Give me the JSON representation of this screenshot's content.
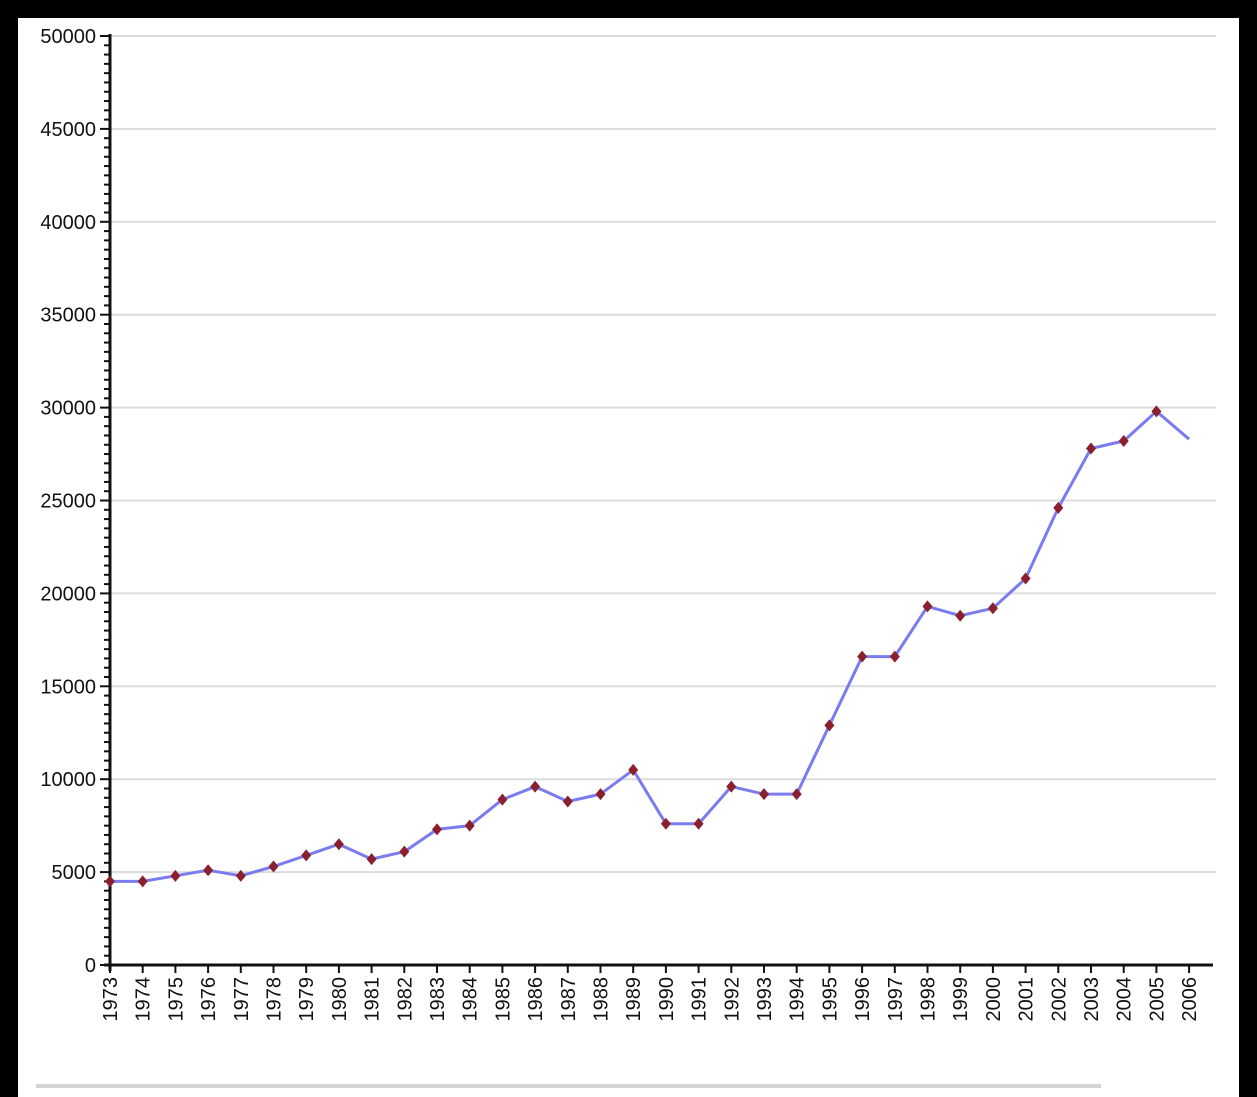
{
  "chart_data": {
    "type": "line",
    "title": "",
    "xlabel": "",
    "ylabel": "",
    "ylim": [
      0,
      50000
    ],
    "yticks": [
      0,
      5000,
      10000,
      15000,
      20000,
      25000,
      30000,
      35000,
      40000,
      45000,
      50000
    ],
    "grid": "horizontal",
    "legend": "none",
    "line_color": "#7b7bf0",
    "marker_color": "#8a1f2e",
    "categories": [
      "1973",
      "1974",
      "1975",
      "1976",
      "1977",
      "1978",
      "1979",
      "1980",
      "1981",
      "1982",
      "1983",
      "1984",
      "1985",
      "1986",
      "1987",
      "1988",
      "1989",
      "1990",
      "1991",
      "1992",
      "1993",
      "1994",
      "1995",
      "1996",
      "1997",
      "1998",
      "1999",
      "2000",
      "2001",
      "2002",
      "2003",
      "2004",
      "2005",
      "2006"
    ],
    "series": [
      {
        "values": [
          4500,
          4500,
          4800,
          5100,
          4800,
          5300,
          5900,
          6500,
          5700,
          6100,
          7300,
          7500,
          8900,
          9600,
          8800,
          9200,
          10500,
          7600,
          7600,
          9600,
          9200,
          9200,
          12900,
          16600,
          16600,
          19300,
          18800,
          19200,
          20800,
          24600,
          27800,
          28200,
          29800,
          28300
        ]
      }
    ]
  }
}
